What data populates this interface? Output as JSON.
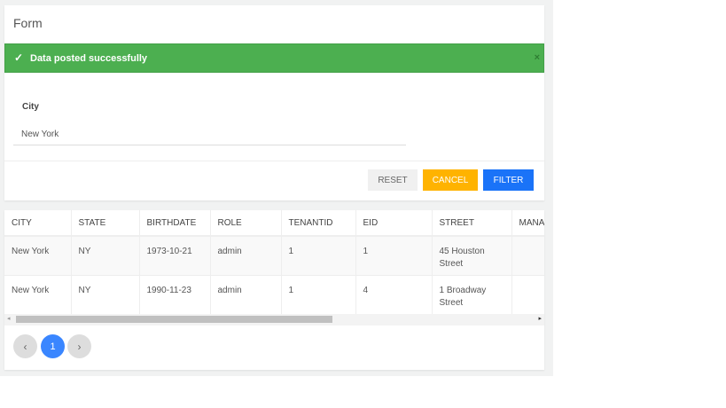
{
  "form": {
    "title": "Form",
    "alert": {
      "icon": "check-icon",
      "message": "Data posted successfully",
      "close": "×",
      "color": "#4caf50"
    },
    "city_label": "City",
    "city_value": "New York",
    "buttons": {
      "reset": "RESET",
      "cancel": "CANCEL",
      "filter": "FILTER"
    }
  },
  "table": {
    "headers": [
      "CITY",
      "STATE",
      "BIRTHDATE",
      "ROLE",
      "TENANTID",
      "EID",
      "STREET",
      "MANAG"
    ],
    "rows": [
      [
        "New York",
        "NY",
        "1973-10-21",
        "admin",
        "1",
        "1",
        "45 Houston Street",
        ""
      ],
      [
        "New York",
        "NY",
        "1990-11-23",
        "admin",
        "1",
        "4",
        "1 Broadway Street",
        ""
      ]
    ]
  },
  "pagination": {
    "prev": "‹",
    "current": "1",
    "next": "›"
  },
  "scrollbar": {
    "left": "◂",
    "right": "▸"
  }
}
